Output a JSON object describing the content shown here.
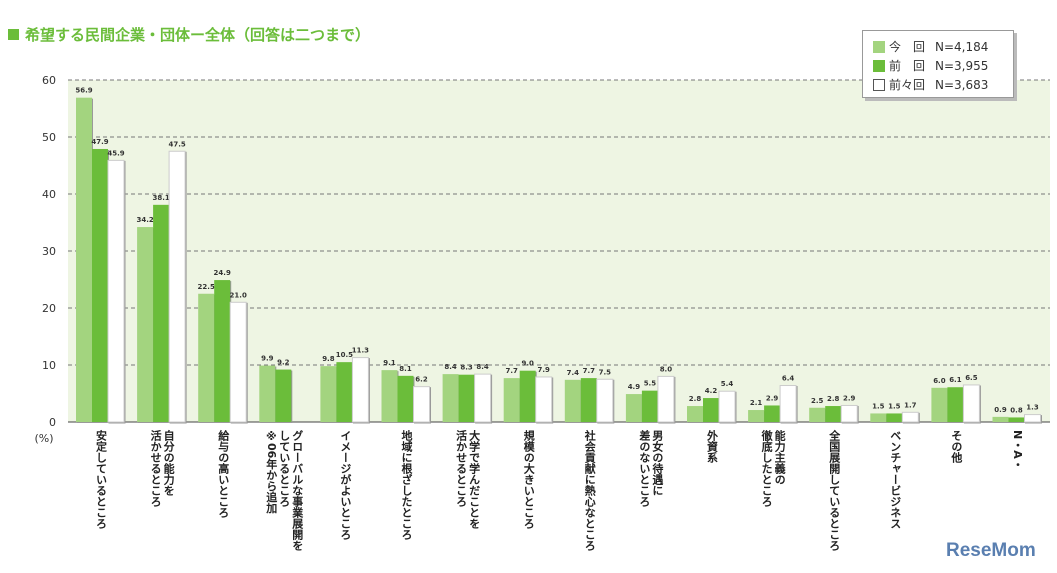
{
  "chart_data": {
    "type": "bar",
    "title": "希望する民間企業・団体ー全体（回答は二つまで）",
    "ylabel": "(%)",
    "ylim": [
      0,
      60
    ],
    "yticks": [
      0,
      10,
      20,
      30,
      40,
      50,
      60
    ],
    "grid": true,
    "legend_placement": "top-right",
    "categories": [
      "安定しているところ",
      "自分の能力を\n活かせるところ",
      "給与の高いところ",
      "グローバルな事業展開を\nしているところ\n※06年から追加",
      "イメージがよいところ",
      "地域に根ざしたところ",
      "大学で学んだことを\n活かせるところ",
      "規模の大きいところ",
      "社会貢献に熱心なところ",
      "男女の待遇に\n差のないところ",
      "外資系",
      "能力主義の\n徹底したところ",
      "全国展開しているところ",
      "ベンチャービジネス",
      "その他",
      "N・A・"
    ],
    "series": [
      {
        "name": "今　回",
        "n": "N=4,184",
        "color": "#a3d47f",
        "values": [
          56.9,
          34.2,
          22.5,
          9.9,
          9.8,
          9.1,
          8.4,
          7.7,
          7.4,
          4.9,
          2.8,
          2.1,
          2.5,
          1.5,
          6.0,
          0.9
        ]
      },
      {
        "name": "前　回",
        "n": "N=3,955",
        "color": "#6bbd3a",
        "values": [
          47.9,
          38.1,
          24.9,
          9.2,
          10.5,
          8.1,
          8.3,
          9.0,
          7.7,
          5.5,
          4.2,
          2.9,
          2.8,
          1.5,
          6.1,
          0.8
        ]
      },
      {
        "name": "前々回",
        "n": "N=3,683",
        "color": "#ffffff",
        "values": [
          45.9,
          47.5,
          21.0,
          null,
          11.3,
          6.2,
          8.4,
          7.9,
          7.5,
          8.0,
          5.4,
          6.4,
          2.9,
          1.7,
          6.5,
          1.3
        ]
      }
    ]
  },
  "brand": "ReseMom"
}
